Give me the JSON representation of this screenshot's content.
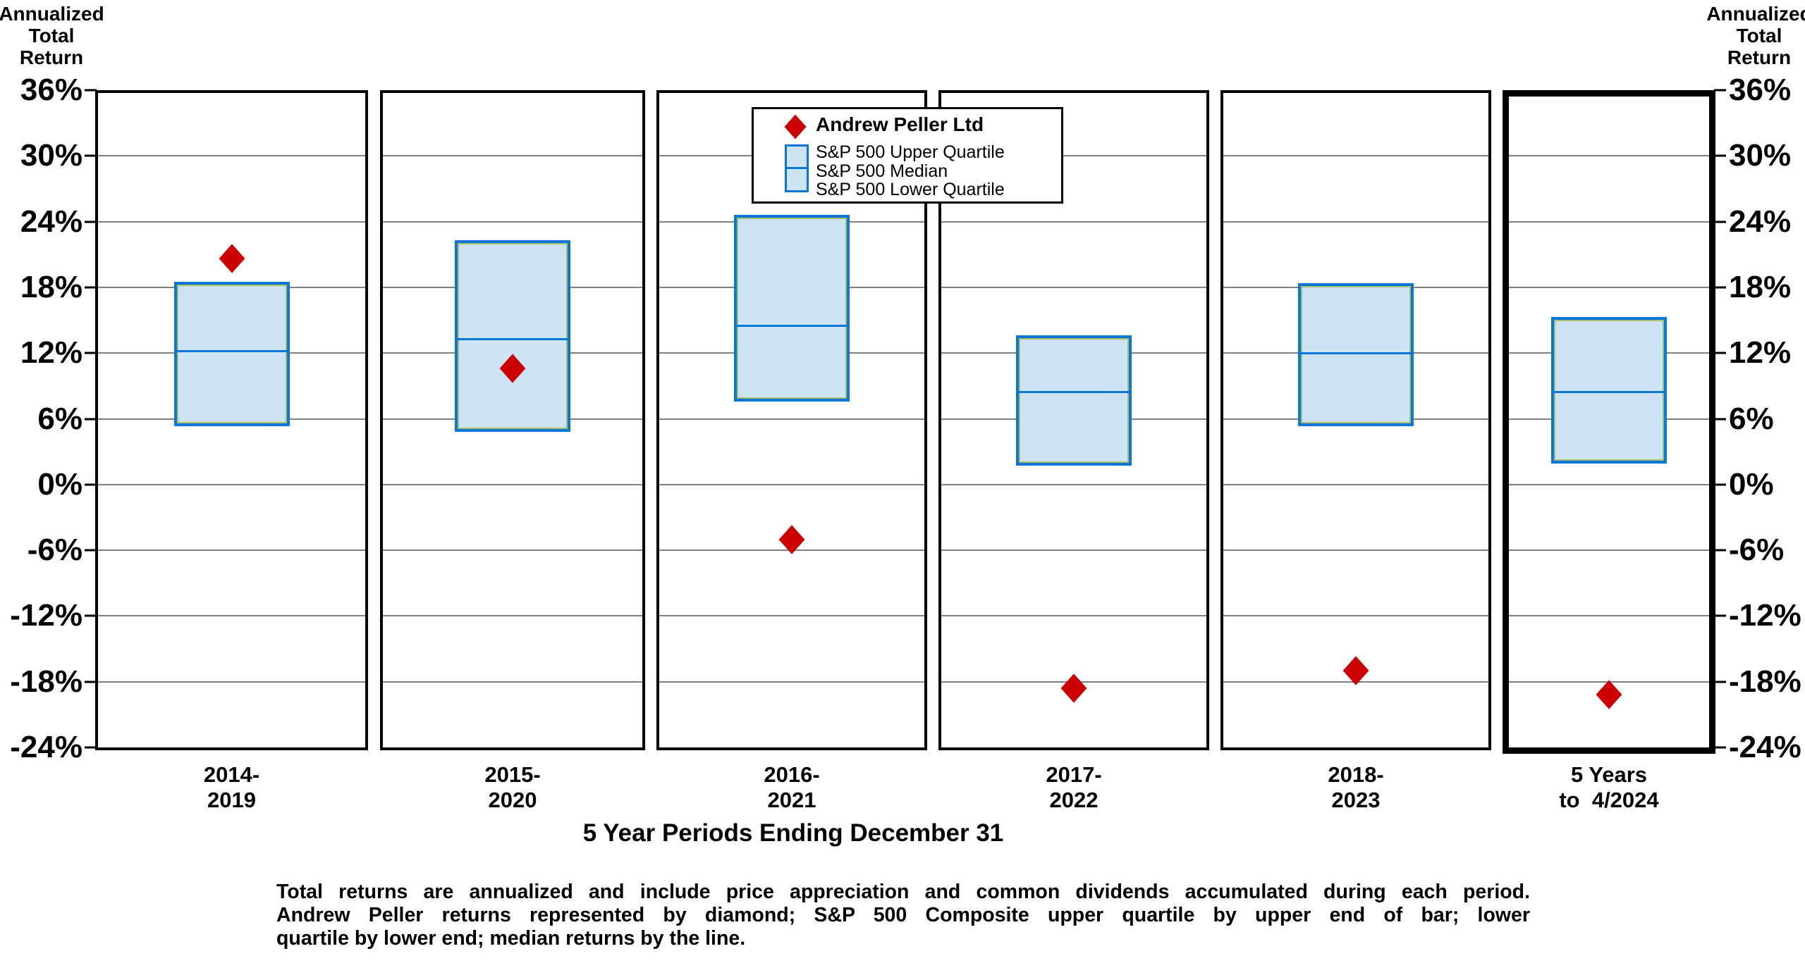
{
  "corner_label_lines": [
    "Annualized",
    "Total",
    "Return"
  ],
  "x_axis_title": "5 Year Periods Ending December 31",
  "legend": {
    "series_label": "Andrew Peller Ltd",
    "items": [
      "S&P 500 Upper Quartile",
      "S&P 500 Median",
      "S&P 500 Lower Quartile"
    ]
  },
  "footnote": {
    "lines": [
      "Total returns are annualized and include price appreciation and common dividends accumulated during each period.",
      "Andrew Peller returns represented by diamond; S&P 500 Composite upper quartile by upper end of bar; lower",
      "quartile by lower end; median returns by the line."
    ]
  },
  "chart_data": {
    "type": "box-and-point",
    "title": "",
    "xlabel": "5 Year Periods Ending December 31",
    "ylabel": "Annualized Total Return",
    "ylim": [
      -24,
      36
    ],
    "grid": "horizontal",
    "legend_position": "top-center",
    "y_axis": {
      "unit": "%",
      "tick_values": [
        36,
        30,
        24,
        18,
        12,
        6,
        0,
        -6,
        -12,
        -18,
        -24
      ],
      "tick_labels": [
        "36%",
        "30%",
        "24%",
        "18%",
        "12%",
        "6%",
        "0%",
        "-6%",
        "-12%",
        "-18%",
        "-24%"
      ]
    },
    "series_name": "Andrew Peller Ltd",
    "panels": [
      {
        "label_line1": "2014-",
        "label_line2": "2019",
        "company": 20.6,
        "upper_quartile": 18.5,
        "median": 12.2,
        "lower_quartile": 5.3,
        "highlight": false
      },
      {
        "label_line1": "2015-",
        "label_line2": "2020",
        "company": 10.6,
        "upper_quartile": 22.3,
        "median": 13.3,
        "lower_quartile": 4.8,
        "highlight": false
      },
      {
        "label_line1": "2016-",
        "label_line2": "2021",
        "company": -5.0,
        "upper_quartile": 24.6,
        "median": 14.5,
        "lower_quartile": 7.6,
        "highlight": false
      },
      {
        "label_line1": "2017-",
        "label_line2": "2022",
        "company": -18.6,
        "upper_quartile": 13.6,
        "median": 8.5,
        "lower_quartile": 1.7,
        "highlight": false
      },
      {
        "label_line1": "2018-",
        "label_line2": "2023",
        "company": -17.0,
        "upper_quartile": 18.4,
        "median": 12.0,
        "lower_quartile": 5.3,
        "highlight": false
      },
      {
        "label_line1": "5 Years",
        "label_line2": "to  4/2024",
        "company": -19.2,
        "upper_quartile": 15.3,
        "median": 8.5,
        "lower_quartile": 1.9,
        "highlight": true
      }
    ],
    "colors": {
      "diamond": "#CC0000",
      "box_fill": "#CEE3F6",
      "box_border": "#0A76D8",
      "gridline": "#7f7f7f",
      "panel_border": "#000000"
    }
  }
}
